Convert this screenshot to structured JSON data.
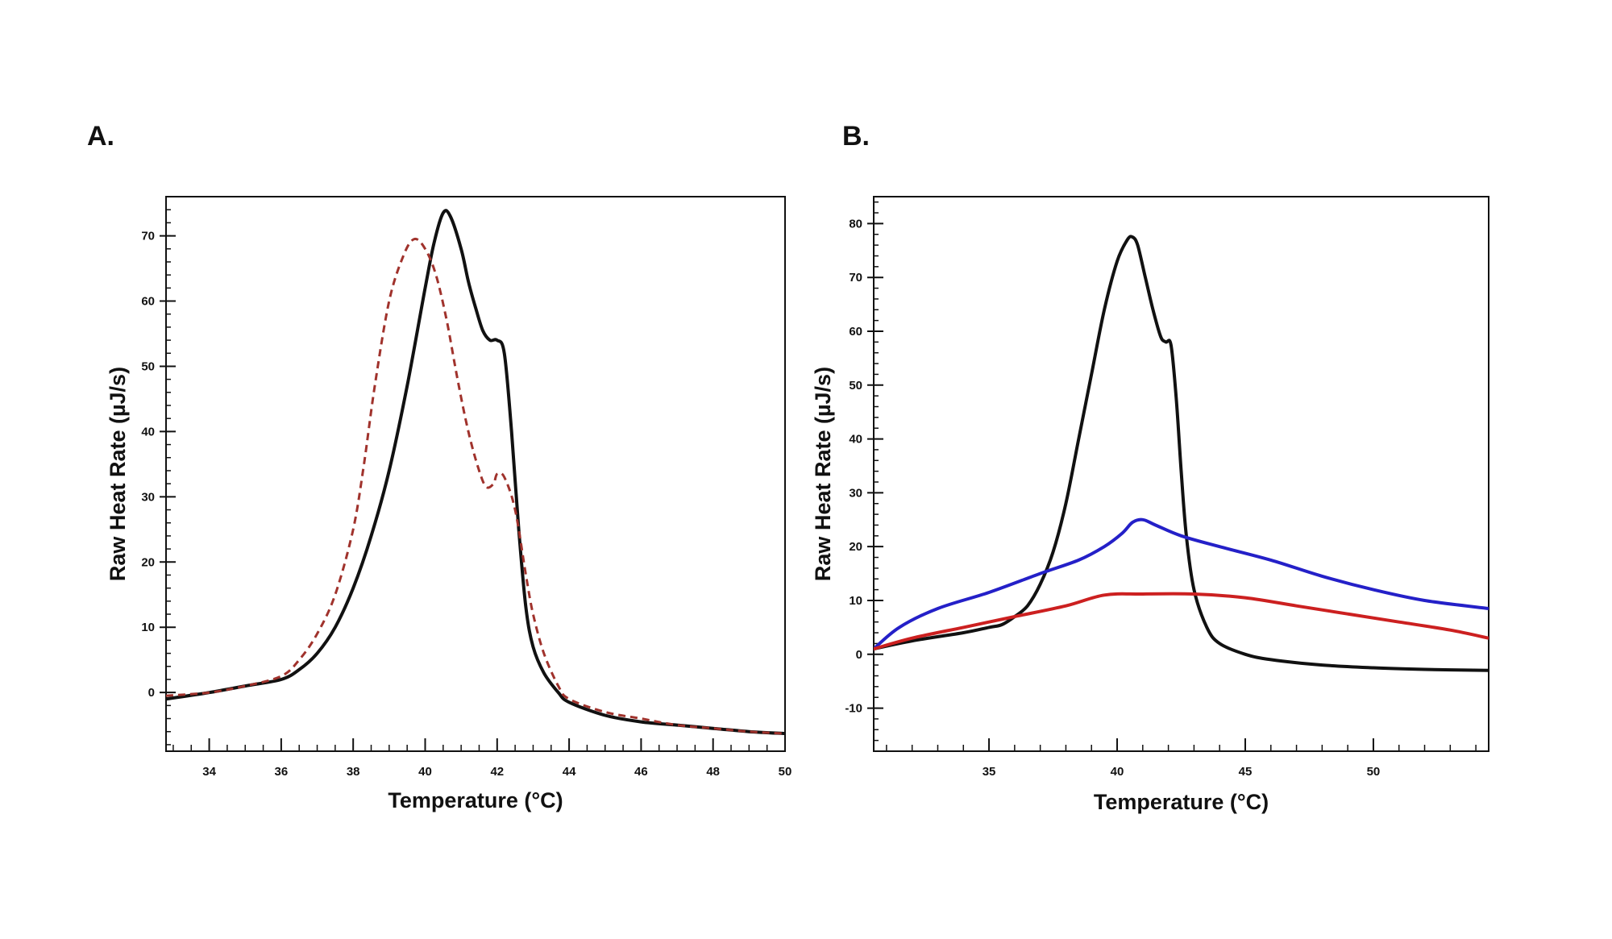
{
  "chart_data": [
    {
      "panel": "A.",
      "type": "line",
      "title": "",
      "xlabel": "Temperature (°C)",
      "ylabel": "Raw Heat Rate (µJ/s)",
      "xlim": [
        32.8,
        50
      ],
      "ylim": [
        -9,
        76
      ],
      "xticks": [
        34,
        36,
        38,
        40,
        42,
        44,
        46,
        48,
        50
      ],
      "yticks": [
        0,
        10,
        20,
        30,
        40,
        50,
        60,
        70
      ],
      "x_minor_step": 0.5,
      "y_minor_step": 2,
      "grid": false,
      "series": [
        {
          "name": "solid",
          "color": "#111111",
          "style": "solid",
          "points": [
            [
              32.8,
              -1
            ],
            [
              34,
              0
            ],
            [
              35,
              1
            ],
            [
              36,
              2
            ],
            [
              36.5,
              3.5
            ],
            [
              37,
              6
            ],
            [
              37.5,
              10
            ],
            [
              38,
              16
            ],
            [
              38.5,
              24
            ],
            [
              39,
              34
            ],
            [
              39.5,
              47
            ],
            [
              40,
              62
            ],
            [
              40.25,
              69
            ],
            [
              40.5,
              73.5
            ],
            [
              40.7,
              73
            ],
            [
              41,
              68
            ],
            [
              41.2,
              63
            ],
            [
              41.4,
              59
            ],
            [
              41.6,
              55.5
            ],
            [
              41.8,
              54
            ],
            [
              42,
              54
            ],
            [
              42.2,
              52
            ],
            [
              42.4,
              40
            ],
            [
              42.6,
              25
            ],
            [
              42.8,
              13
            ],
            [
              43,
              7
            ],
            [
              43.3,
              3
            ],
            [
              43.7,
              0
            ],
            [
              44,
              -1.5
            ],
            [
              45,
              -3.5
            ],
            [
              46,
              -4.5
            ],
            [
              47,
              -5
            ],
            [
              48,
              -5.5
            ],
            [
              49,
              -6
            ],
            [
              50,
              -6.3
            ]
          ]
        },
        {
          "name": "dashed",
          "color": "#a0322c",
          "style": "dashed",
          "points": [
            [
              32.8,
              -0.5
            ],
            [
              34,
              0
            ],
            [
              35,
              1
            ],
            [
              36,
              2.5
            ],
            [
              36.5,
              5
            ],
            [
              37,
              9
            ],
            [
              37.5,
              15
            ],
            [
              38,
              25
            ],
            [
              38.3,
              35
            ],
            [
              38.6,
              47
            ],
            [
              39,
              60
            ],
            [
              39.4,
              67
            ],
            [
              39.7,
              69.5
            ],
            [
              40,
              68
            ],
            [
              40.3,
              64
            ],
            [
              40.6,
              57
            ],
            [
              40.9,
              48
            ],
            [
              41.2,
              40
            ],
            [
              41.5,
              34
            ],
            [
              41.7,
              31.5
            ],
            [
              41.9,
              32
            ],
            [
              42,
              33.5
            ],
            [
              42.2,
              33
            ],
            [
              42.5,
              28
            ],
            [
              42.8,
              18
            ],
            [
              43,
              12
            ],
            [
              43.3,
              6
            ],
            [
              43.7,
              1
            ],
            [
              44,
              -1
            ],
            [
              45,
              -3
            ],
            [
              46,
              -4
            ],
            [
              47,
              -5
            ],
            [
              48,
              -5.5
            ],
            [
              49,
              -6
            ],
            [
              50,
              -6.3
            ]
          ]
        }
      ]
    },
    {
      "panel": "B.",
      "type": "line",
      "title": "",
      "xlabel": "Temperature (°C)",
      "ylabel": "Raw Heat Rate (µJ/s)",
      "xlim": [
        30.5,
        54.5
      ],
      "ylim": [
        -18,
        85
      ],
      "xticks": [
        35,
        40,
        45,
        50
      ],
      "yticks": [
        -10,
        0,
        10,
        20,
        30,
        40,
        50,
        60,
        70,
        80
      ],
      "x_minor_step": 1,
      "y_minor_step": 2,
      "grid": false,
      "series": [
        {
          "name": "black",
          "color": "#111111",
          "style": "solid",
          "points": [
            [
              30.5,
              1
            ],
            [
              32,
              2.5
            ],
            [
              34,
              4
            ],
            [
              35,
              5
            ],
            [
              35.5,
              5.5
            ],
            [
              36,
              7
            ],
            [
              36.5,
              9
            ],
            [
              37,
              13
            ],
            [
              37.5,
              19
            ],
            [
              38,
              28
            ],
            [
              38.5,
              40
            ],
            [
              39,
              52
            ],
            [
              39.5,
              64
            ],
            [
              40,
              73
            ],
            [
              40.4,
              77
            ],
            [
              40.6,
              77.5
            ],
            [
              40.8,
              76
            ],
            [
              41.1,
              70
            ],
            [
              41.4,
              64
            ],
            [
              41.7,
              59
            ],
            [
              41.9,
              58
            ],
            [
              42.1,
              57.5
            ],
            [
              42.3,
              48
            ],
            [
              42.5,
              34
            ],
            [
              42.7,
              22
            ],
            [
              43,
              12
            ],
            [
              43.5,
              5
            ],
            [
              44,
              2
            ],
            [
              45,
              0
            ],
            [
              46,
              -1
            ],
            [
              48,
              -2
            ],
            [
              50,
              -2.5
            ],
            [
              52,
              -2.8
            ],
            [
              54.5,
              -3
            ]
          ]
        },
        {
          "name": "blue",
          "color": "#2420c8",
          "style": "solid",
          "points": [
            [
              30.5,
              1
            ],
            [
              31.5,
              5
            ],
            [
              33,
              8.5
            ],
            [
              35,
              11.5
            ],
            [
              37,
              15
            ],
            [
              38.5,
              17.5
            ],
            [
              39.5,
              20
            ],
            [
              40.2,
              22.5
            ],
            [
              40.6,
              24.5
            ],
            [
              41,
              25
            ],
            [
              41.5,
              24
            ],
            [
              42.5,
              22
            ],
            [
              44,
              20
            ],
            [
              46,
              17.5
            ],
            [
              48,
              14.5
            ],
            [
              50,
              12
            ],
            [
              52,
              10
            ],
            [
              54.5,
              8.5
            ]
          ]
        },
        {
          "name": "red",
          "color": "#cc2020",
          "style": "solid",
          "points": [
            [
              30.5,
              1
            ],
            [
              32,
              3
            ],
            [
              34,
              5
            ],
            [
              36,
              7
            ],
            [
              38,
              9
            ],
            [
              39.5,
              11
            ],
            [
              41,
              11.2
            ],
            [
              43,
              11.2
            ],
            [
              45,
              10.5
            ],
            [
              47,
              9
            ],
            [
              49,
              7.5
            ],
            [
              51,
              6
            ],
            [
              53,
              4.5
            ],
            [
              54.5,
              3
            ]
          ]
        }
      ]
    }
  ]
}
